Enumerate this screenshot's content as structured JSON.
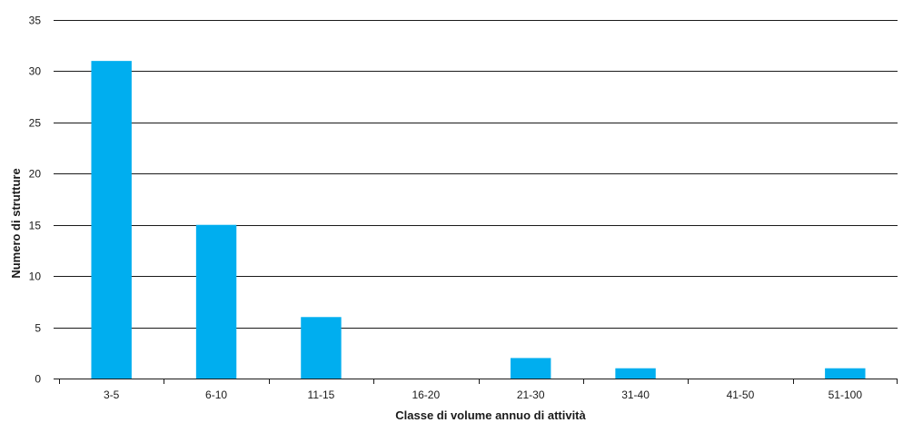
{
  "chart_data": {
    "type": "bar",
    "categories": [
      "3-5",
      "6-10",
      "11-15",
      "16-20",
      "21-30",
      "31-40",
      "41-50",
      "51-100"
    ],
    "values": [
      31,
      15,
      6,
      0,
      2,
      1,
      0,
      1
    ],
    "xlabel": "Classe di volume annuo di attività",
    "ylabel": "Numero di strutture",
    "ylim": [
      0,
      35
    ],
    "yticks": [
      0,
      5,
      10,
      15,
      20,
      25,
      30,
      35
    ],
    "grid": true,
    "bar_color": "#00aeef",
    "legend": "none"
  }
}
